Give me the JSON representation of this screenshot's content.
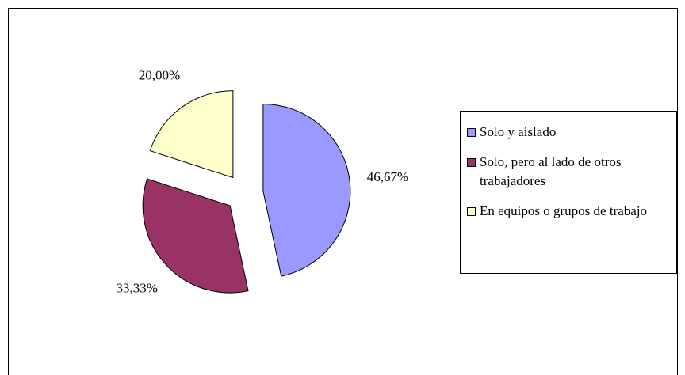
{
  "chart_data": {
    "type": "pie",
    "categories": [
      "Solo y aislado",
      "Solo, pero al lado de otros trabajadores",
      "En equipos o grupos de trabajo"
    ],
    "values": [
      46.67,
      33.33,
      20.0
    ],
    "value_labels": [
      "46,67%",
      "33,33%",
      "20,00%"
    ],
    "colors": [
      "#9999ff",
      "#993366",
      "#ffffcc"
    ],
    "exploded": true,
    "legend": "right"
  }
}
